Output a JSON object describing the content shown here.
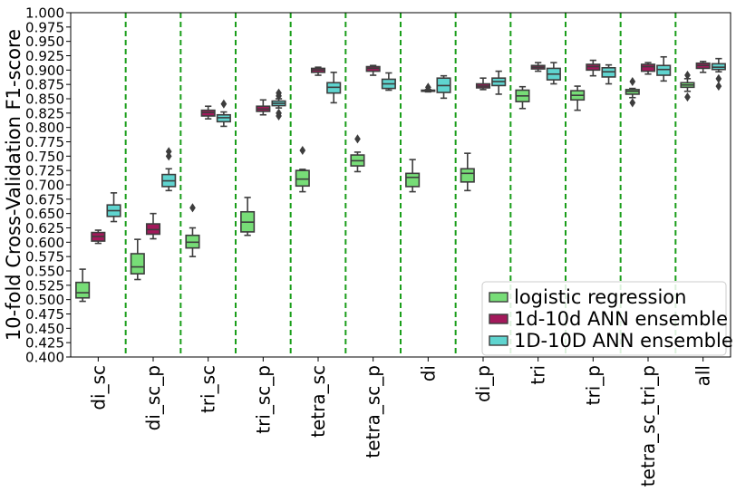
{
  "chart_data": {
    "type": "box",
    "title": "",
    "xlabel": "",
    "ylabel": "10-fold Cross-Validation F1-score",
    "ylim": [
      0.4,
      1.0
    ],
    "y_ticks": [
      "0.400",
      "0.425",
      "0.450",
      "0.475",
      "0.500",
      "0.525",
      "0.550",
      "0.575",
      "0.600",
      "0.625",
      "0.650",
      "0.675",
      "0.700",
      "0.725",
      "0.750",
      "0.775",
      "0.800",
      "0.825",
      "0.850",
      "0.875",
      "0.900",
      "0.925",
      "0.950",
      "0.975",
      "1.000"
    ],
    "categories": [
      "di_sc",
      "di_sc_p",
      "tri_sc",
      "tri_sc_p",
      "tetra_sc",
      "tetra_sc_p",
      "di",
      "di_p",
      "tri",
      "tri_p",
      "tetra_sc_tri_p",
      "all"
    ],
    "grid": false,
    "category_separators": "dashed green vertical lines between categories",
    "legend_position": "lower-right",
    "series": [
      {
        "name": "logistic regression",
        "color": "#77dd77",
        "boxes": [
          {
            "min": 0.497,
            "q1": 0.503,
            "median": 0.512,
            "q3": 0.53,
            "max": 0.553,
            "outliers": []
          },
          {
            "min": 0.535,
            "q1": 0.545,
            "median": 0.557,
            "q3": 0.58,
            "max": 0.605,
            "outliers": []
          },
          {
            "min": 0.575,
            "q1": 0.59,
            "median": 0.6,
            "q3": 0.612,
            "max": 0.625,
            "outliers": [
              0.66
            ]
          },
          {
            "min": 0.612,
            "q1": 0.618,
            "median": 0.635,
            "q3": 0.653,
            "max": 0.678,
            "outliers": []
          },
          {
            "min": 0.688,
            "q1": 0.698,
            "median": 0.71,
            "q3": 0.725,
            "max": 0.727,
            "outliers": [
              0.76
            ]
          },
          {
            "min": 0.723,
            "q1": 0.733,
            "median": 0.742,
            "q3": 0.752,
            "max": 0.757,
            "outliers": [
              0.78
            ]
          },
          {
            "min": 0.688,
            "q1": 0.697,
            "median": 0.713,
            "q3": 0.72,
            "max": 0.744,
            "outliers": []
          },
          {
            "min": 0.69,
            "q1": 0.705,
            "median": 0.72,
            "q3": 0.728,
            "max": 0.755,
            "outliers": []
          },
          {
            "min": 0.833,
            "q1": 0.845,
            "median": 0.855,
            "q3": 0.865,
            "max": 0.871,
            "outliers": []
          },
          {
            "min": 0.83,
            "q1": 0.848,
            "median": 0.856,
            "q3": 0.864,
            "max": 0.872,
            "outliers": []
          },
          {
            "min": 0.852,
            "q1": 0.858,
            "median": 0.863,
            "q3": 0.866,
            "max": 0.868,
            "outliers": [
              0.843,
              0.88
            ]
          },
          {
            "min": 0.863,
            "q1": 0.87,
            "median": 0.874,
            "q3": 0.878,
            "max": 0.885,
            "outliers": [
              0.853,
              0.891
            ]
          }
        ]
      },
      {
        "name": "1d-10d ANN ensemble",
        "color": "#a3195b",
        "boxes": [
          {
            "min": 0.598,
            "q1": 0.602,
            "median": 0.61,
            "q3": 0.617,
            "max": 0.621,
            "outliers": []
          },
          {
            "min": 0.606,
            "q1": 0.614,
            "median": 0.622,
            "q3": 0.632,
            "max": 0.65,
            "outliers": []
          },
          {
            "min": 0.815,
            "q1": 0.82,
            "median": 0.826,
            "q3": 0.83,
            "max": 0.837,
            "outliers": []
          },
          {
            "min": 0.822,
            "q1": 0.828,
            "median": 0.832,
            "q3": 0.837,
            "max": 0.848,
            "outliers": []
          },
          {
            "min": 0.891,
            "q1": 0.896,
            "median": 0.9,
            "q3": 0.903,
            "max": 0.905,
            "outliers": []
          },
          {
            "min": 0.891,
            "q1": 0.898,
            "median": 0.903,
            "q3": 0.906,
            "max": 0.908,
            "outliers": []
          },
          {
            "min": 0.862,
            "q1": 0.863,
            "median": 0.864,
            "q3": 0.865,
            "max": 0.866,
            "outliers": [
              0.87
            ]
          },
          {
            "min": 0.866,
            "q1": 0.869,
            "median": 0.872,
            "q3": 0.876,
            "max": 0.886,
            "outliers": []
          },
          {
            "min": 0.898,
            "q1": 0.902,
            "median": 0.905,
            "q3": 0.908,
            "max": 0.913,
            "outliers": []
          },
          {
            "min": 0.89,
            "q1": 0.9,
            "median": 0.906,
            "q3": 0.91,
            "max": 0.917,
            "outliers": []
          },
          {
            "min": 0.893,
            "q1": 0.898,
            "median": 0.906,
            "q3": 0.91,
            "max": 0.913,
            "outliers": []
          },
          {
            "min": 0.896,
            "q1": 0.903,
            "median": 0.908,
            "q3": 0.912,
            "max": 0.915,
            "outliers": []
          }
        ]
      },
      {
        "name": "1D-10D ANN ensemble",
        "color": "#5fd4cf",
        "boxes": [
          {
            "min": 0.636,
            "q1": 0.645,
            "median": 0.655,
            "q3": 0.665,
            "max": 0.686,
            "outliers": []
          },
          {
            "min": 0.69,
            "q1": 0.697,
            "median": 0.707,
            "q3": 0.718,
            "max": 0.728,
            "outliers": [
              0.75,
              0.758
            ]
          },
          {
            "min": 0.802,
            "q1": 0.81,
            "median": 0.817,
            "q3": 0.822,
            "max": 0.827,
            "outliers": [
              0.841
            ]
          },
          {
            "min": 0.834,
            "q1": 0.838,
            "median": 0.842,
            "q3": 0.846,
            "max": 0.85,
            "outliers": [
              0.82,
              0.825,
              0.855,
              0.86
            ]
          },
          {
            "min": 0.843,
            "q1": 0.86,
            "median": 0.87,
            "q3": 0.878,
            "max": 0.896,
            "outliers": []
          },
          {
            "min": 0.865,
            "q1": 0.868,
            "median": 0.876,
            "q3": 0.884,
            "max": 0.895,
            "outliers": []
          },
          {
            "min": 0.851,
            "q1": 0.861,
            "median": 0.873,
            "q3": 0.886,
            "max": 0.89,
            "outliers": []
          },
          {
            "min": 0.858,
            "q1": 0.873,
            "median": 0.88,
            "q3": 0.886,
            "max": 0.898,
            "outliers": []
          },
          {
            "min": 0.876,
            "q1": 0.883,
            "median": 0.893,
            "q3": 0.903,
            "max": 0.913,
            "outliers": []
          },
          {
            "min": 0.876,
            "q1": 0.888,
            "median": 0.897,
            "q3": 0.904,
            "max": 0.909,
            "outliers": []
          },
          {
            "min": 0.881,
            "q1": 0.891,
            "median": 0.901,
            "q3": 0.908,
            "max": 0.923,
            "outliers": []
          },
          {
            "min": 0.897,
            "q1": 0.901,
            "median": 0.905,
            "q3": 0.911,
            "max": 0.92,
            "outliers": [
              0.885,
              0.872
            ]
          }
        ]
      }
    ]
  }
}
